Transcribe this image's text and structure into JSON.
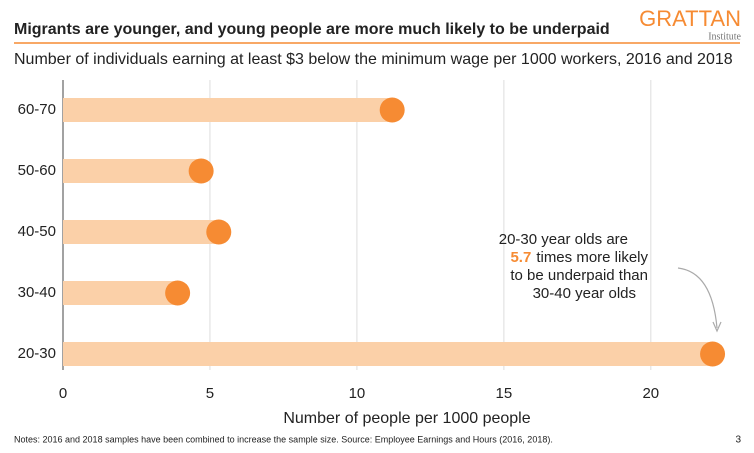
{
  "logo": {
    "name": "GRATTAN",
    "sub": "Institute"
  },
  "page_number": "3",
  "chart_data": {
    "type": "lollipop",
    "title": "Migrants are younger, and young people are more much likely to be underpaid",
    "subtitle": "Number of individuals earning at least $3 below the minimum wage per 1000 workers, 2016 and 2018",
    "categories": [
      "60-70",
      "50-60",
      "40-50",
      "30-40",
      "20-30"
    ],
    "values": [
      11.2,
      4.7,
      5.3,
      3.9,
      22.1
    ],
    "color": "#f68b33",
    "bar_color": "#fbd0a8",
    "xlim": [
      0,
      23
    ],
    "xticks": [
      0,
      5,
      10,
      15,
      20
    ],
    "grid": true,
    "xlabel": "Number of people per 1000 people",
    "annotation": {
      "line1": "20-30 year olds are",
      "highlight": "5.7",
      "line2": "times more likely",
      "line3": "to be underpaid than",
      "line4": "30-40 year olds"
    },
    "notes": "Notes: 2016 and 2018 samples have been combined to increase the sample size. Source: Employee Earnings and Hours (2016, 2018)."
  }
}
